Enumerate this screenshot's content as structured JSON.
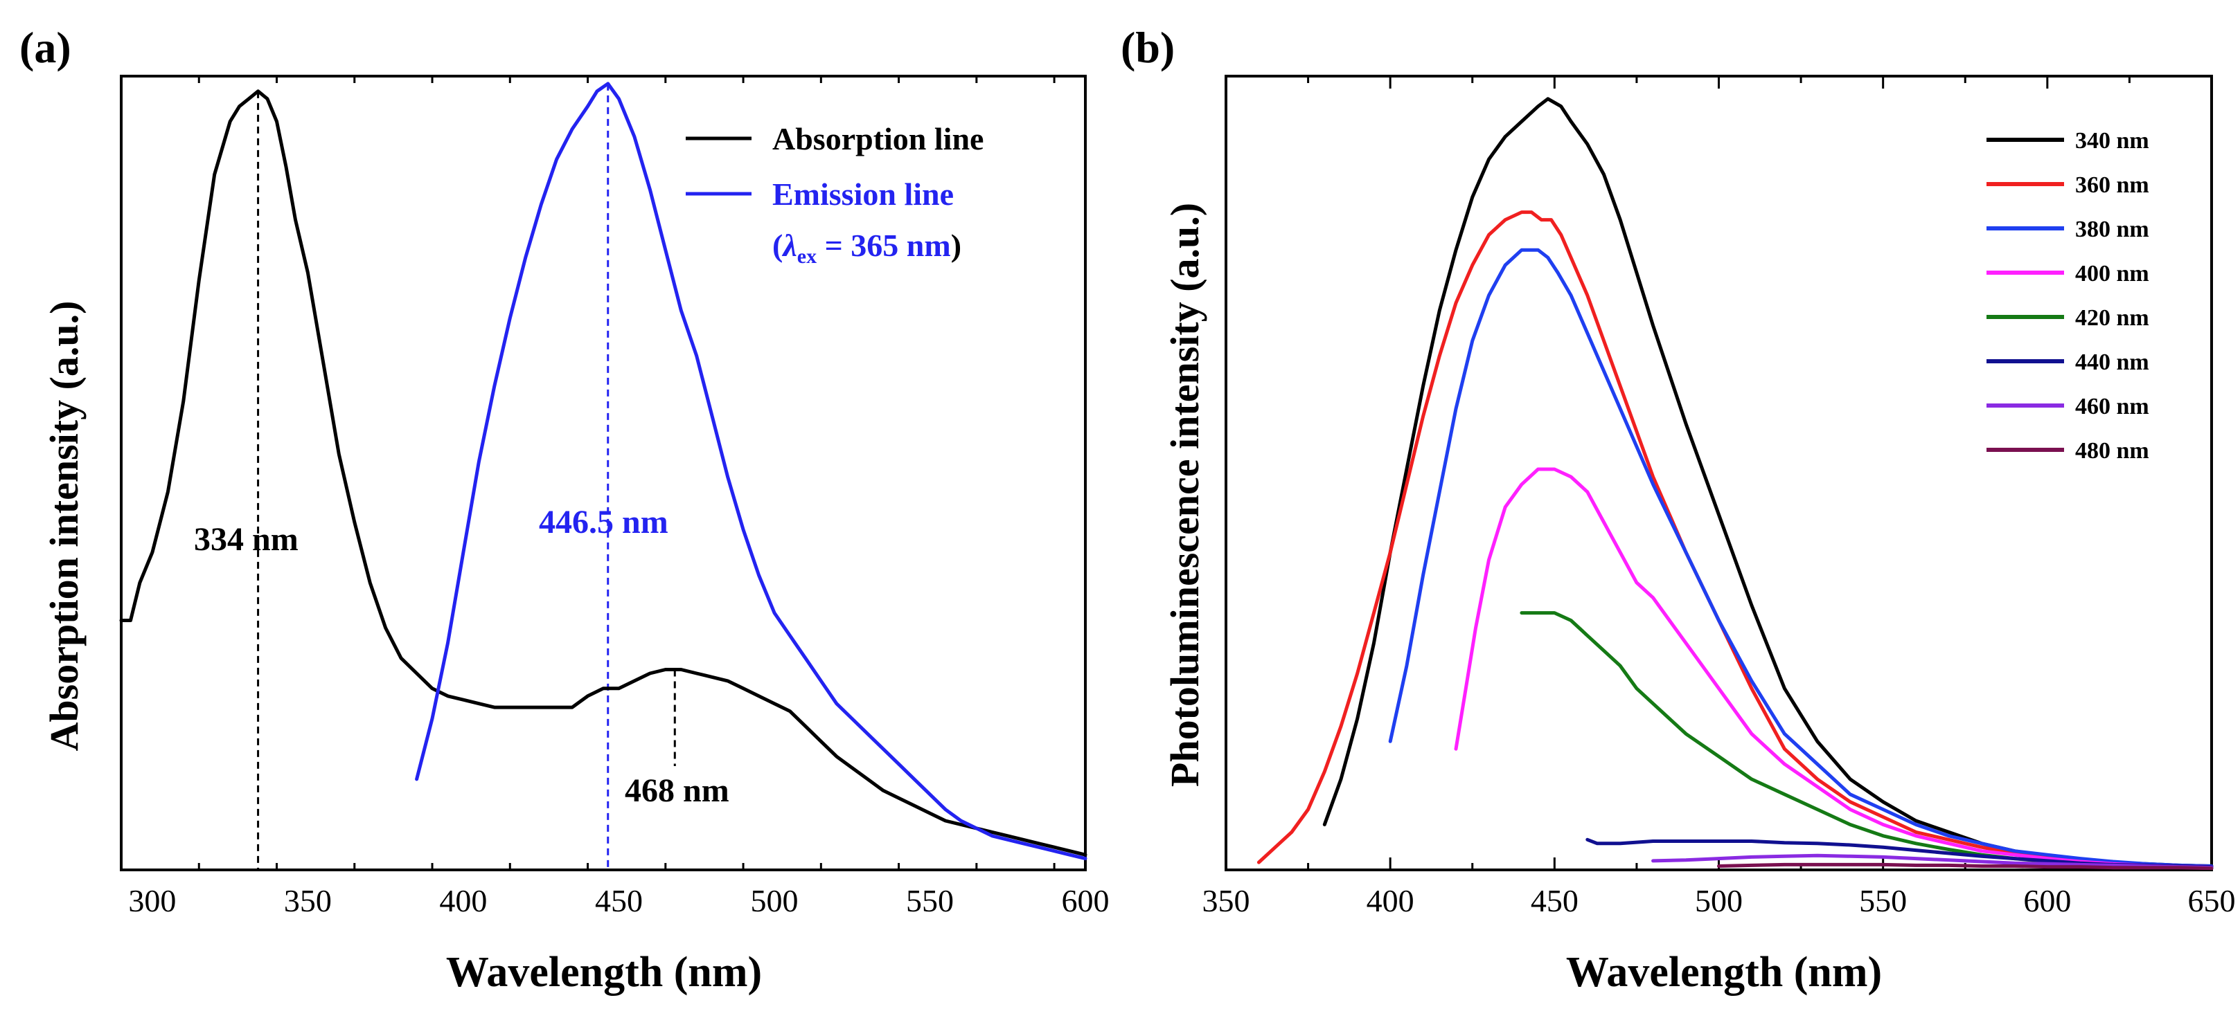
{
  "chart_data": [
    {
      "panel": "(a)",
      "type": "line",
      "xlabel": "Wavelength  (nm)",
      "ylabel": "Absorption intensity  (a.u.)",
      "xlim": [
        290,
        600
      ],
      "ylim": [
        0,
        1.05
      ],
      "xticks": [
        300,
        350,
        400,
        450,
        500,
        550,
        600
      ],
      "series": [
        {
          "name": "Absorption line",
          "color": "#000000",
          "x": [
            290,
            293,
            296,
            300,
            305,
            310,
            315,
            320,
            325,
            328,
            331,
            334,
            337,
            340,
            343,
            346,
            350,
            355,
            360,
            365,
            370,
            375,
            380,
            385,
            390,
            395,
            400,
            405,
            410,
            415,
            420,
            425,
            430,
            435,
            440,
            445,
            450,
            455,
            460,
            465,
            468,
            470,
            475,
            480,
            485,
            490,
            495,
            500,
            505,
            510,
            515,
            520,
            525,
            530,
            535,
            540,
            545,
            550,
            555,
            560,
            565,
            570,
            575,
            580,
            585,
            590,
            595,
            600
          ],
          "y": [
            0.33,
            0.33,
            0.38,
            0.42,
            0.5,
            0.62,
            0.78,
            0.92,
            0.99,
            1.01,
            1.02,
            1.03,
            1.02,
            0.99,
            0.93,
            0.86,
            0.79,
            0.67,
            0.55,
            0.46,
            0.38,
            0.32,
            0.28,
            0.26,
            0.24,
            0.23,
            0.225,
            0.22,
            0.215,
            0.215,
            0.215,
            0.215,
            0.215,
            0.215,
            0.23,
            0.24,
            0.24,
            0.25,
            0.26,
            0.265,
            0.265,
            0.265,
            0.26,
            0.255,
            0.25,
            0.24,
            0.23,
            0.22,
            0.21,
            0.19,
            0.17,
            0.15,
            0.135,
            0.12,
            0.105,
            0.095,
            0.085,
            0.075,
            0.065,
            0.06,
            0.055,
            0.05,
            0.045,
            0.04,
            0.035,
            0.03,
            0.025,
            0.02
          ]
        },
        {
          "name": "Emission line",
          "color": "#2323f0",
          "x": [
            385,
            390,
            395,
            400,
            405,
            410,
            415,
            420,
            425,
            430,
            435,
            440,
            443,
            446.5,
            450,
            455,
            460,
            465,
            470,
            475,
            480,
            485,
            490,
            495,
            500,
            505,
            510,
            515,
            520,
            525,
            530,
            535,
            540,
            545,
            550,
            555,
            560,
            565,
            570,
            575,
            580,
            585,
            590,
            595,
            600
          ],
          "y": [
            0.12,
            0.2,
            0.3,
            0.42,
            0.54,
            0.64,
            0.73,
            0.81,
            0.88,
            0.94,
            0.98,
            1.01,
            1.03,
            1.04,
            1.02,
            0.97,
            0.9,
            0.82,
            0.74,
            0.68,
            0.6,
            0.52,
            0.45,
            0.39,
            0.34,
            0.31,
            0.28,
            0.25,
            0.22,
            0.2,
            0.18,
            0.16,
            0.14,
            0.12,
            0.1,
            0.08,
            0.065,
            0.055,
            0.045,
            0.04,
            0.035,
            0.03,
            0.025,
            0.02,
            0.015
          ]
        }
      ],
      "legend": [
        {
          "label": "Absorption line",
          "color": "#000000"
        },
        {
          "label": "Emission line",
          "color": "#2323f0"
        },
        {
          "label": "(λex = 365 nm)",
          "color": "#2323f0"
        }
      ],
      "legend_position": "top-right",
      "annotations": [
        {
          "text": "334 nm",
          "x": 334,
          "color": "#000000"
        },
        {
          "text": "446.5 nm",
          "x": 446.5,
          "color": "#2323f0"
        },
        {
          "text": "468 nm",
          "x": 468,
          "color": "#000000"
        }
      ],
      "legend_text": {
        "absorption": "Absorption line",
        "emission": "Emission line",
        "lambda_symbol": "λ",
        "lambda_sub": "ex",
        "lambda_rest": " = 365 nm",
        "open_paren": "(",
        "close_paren": ")"
      }
    },
    {
      "panel": "(b)",
      "type": "line",
      "xlabel": "Wavelength  (nm)",
      "ylabel": "Photoluminescence  intensity  (a.u.)",
      "xlim": [
        350,
        650
      ],
      "ylim": [
        0,
        1.05
      ],
      "xticks": [
        350,
        400,
        450,
        500,
        550,
        600,
        650
      ],
      "legend_position": "top-right",
      "series": [
        {
          "name": "340 nm",
          "color": "#000000",
          "x": [
            380,
            385,
            390,
            395,
            400,
            405,
            410,
            415,
            420,
            425,
            430,
            435,
            440,
            445,
            448,
            452,
            455,
            460,
            465,
            470,
            475,
            480,
            490,
            500,
            510,
            520,
            530,
            540,
            550,
            560,
            570,
            580,
            590,
            600,
            610,
            620,
            630,
            640,
            650
          ],
          "y": [
            0.06,
            0.12,
            0.2,
            0.3,
            0.42,
            0.53,
            0.64,
            0.74,
            0.82,
            0.89,
            0.94,
            0.97,
            0.99,
            1.01,
            1.02,
            1.01,
            0.99,
            0.96,
            0.92,
            0.86,
            0.79,
            0.72,
            0.59,
            0.47,
            0.35,
            0.24,
            0.17,
            0.12,
            0.09,
            0.065,
            0.05,
            0.035,
            0.025,
            0.018,
            0.013,
            0.01,
            0.008,
            0.006,
            0.005
          ]
        },
        {
          "name": "360 nm",
          "color": "#f02020",
          "x": [
            360,
            365,
            370,
            375,
            380,
            385,
            390,
            395,
            400,
            405,
            410,
            415,
            420,
            425,
            430,
            435,
            440,
            443,
            446,
            449,
            452,
            455,
            460,
            465,
            470,
            475,
            480,
            490,
            500,
            510,
            520,
            530,
            540,
            550,
            560,
            570,
            580,
            590,
            600,
            610,
            620,
            630,
            640,
            650
          ],
          "y": [
            0.01,
            0.03,
            0.05,
            0.08,
            0.13,
            0.19,
            0.26,
            0.34,
            0.42,
            0.51,
            0.6,
            0.68,
            0.75,
            0.8,
            0.84,
            0.86,
            0.87,
            0.87,
            0.86,
            0.86,
            0.84,
            0.81,
            0.76,
            0.7,
            0.64,
            0.58,
            0.52,
            0.42,
            0.33,
            0.24,
            0.16,
            0.12,
            0.09,
            0.07,
            0.05,
            0.04,
            0.03,
            0.022,
            0.016,
            0.012,
            0.009,
            0.007,
            0.005,
            0.004
          ]
        },
        {
          "name": "380 nm",
          "color": "#1f3ff0",
          "x": [
            400,
            405,
            410,
            415,
            420,
            425,
            430,
            435,
            440,
            445,
            448,
            451,
            455,
            460,
            465,
            470,
            475,
            480,
            490,
            500,
            510,
            520,
            530,
            540,
            550,
            560,
            570,
            580,
            590,
            600,
            610,
            620,
            630,
            640,
            650
          ],
          "y": [
            0.17,
            0.27,
            0.39,
            0.5,
            0.61,
            0.7,
            0.76,
            0.8,
            0.82,
            0.82,
            0.81,
            0.79,
            0.76,
            0.71,
            0.66,
            0.61,
            0.56,
            0.51,
            0.42,
            0.33,
            0.25,
            0.18,
            0.14,
            0.1,
            0.08,
            0.06,
            0.045,
            0.035,
            0.025,
            0.02,
            0.015,
            0.011,
            0.008,
            0.006,
            0.005
          ]
        },
        {
          "name": "400 nm",
          "color": "#ff20ff",
          "x": [
            420,
            423,
            426,
            430,
            435,
            440,
            445,
            450,
            455,
            460,
            465,
            470,
            475,
            480,
            485,
            490,
            500,
            510,
            520,
            530,
            540,
            550,
            560,
            570,
            580,
            590,
            600,
            610,
            620,
            630,
            640,
            650
          ],
          "y": [
            0.16,
            0.24,
            0.32,
            0.41,
            0.48,
            0.51,
            0.53,
            0.53,
            0.52,
            0.5,
            0.46,
            0.42,
            0.38,
            0.36,
            0.33,
            0.3,
            0.24,
            0.18,
            0.14,
            0.11,
            0.08,
            0.06,
            0.045,
            0.035,
            0.025,
            0.02,
            0.015,
            0.011,
            0.008,
            0.006,
            0.005,
            0.004
          ]
        },
        {
          "name": "420 nm",
          "color": "#157a15",
          "x": [
            440,
            445,
            450,
            455,
            460,
            465,
            470,
            475,
            480,
            485,
            490,
            500,
            510,
            520,
            530,
            540,
            550,
            560,
            570,
            580,
            590,
            600,
            610,
            620,
            630,
            640,
            650
          ],
          "y": [
            0.34,
            0.34,
            0.34,
            0.33,
            0.31,
            0.29,
            0.27,
            0.24,
            0.22,
            0.2,
            0.18,
            0.15,
            0.12,
            0.1,
            0.08,
            0.06,
            0.045,
            0.035,
            0.027,
            0.02,
            0.015,
            0.011,
            0.008,
            0.006,
            0.005,
            0.004,
            0.003
          ]
        },
        {
          "name": "440 nm",
          "color": "#101090",
          "x": [
            460,
            463,
            470,
            480,
            490,
            500,
            510,
            520,
            530,
            540,
            550,
            560,
            570,
            580,
            590,
            600,
            610,
            620,
            630,
            640,
            650
          ],
          "y": [
            0.04,
            0.035,
            0.035,
            0.038,
            0.038,
            0.038,
            0.038,
            0.036,
            0.035,
            0.033,
            0.03,
            0.026,
            0.022,
            0.018,
            0.015,
            0.012,
            0.009,
            0.007,
            0.006,
            0.005,
            0.004
          ]
        },
        {
          "name": "460 nm",
          "color": "#8a2be2",
          "x": [
            480,
            490,
            500,
            510,
            520,
            530,
            540,
            550,
            560,
            570,
            580,
            590,
            600,
            610,
            620,
            630,
            640,
            650
          ],
          "y": [
            0.012,
            0.013,
            0.015,
            0.017,
            0.018,
            0.019,
            0.018,
            0.017,
            0.015,
            0.013,
            0.011,
            0.009,
            0.008,
            0.007,
            0.006,
            0.005,
            0.004,
            0.003
          ]
        },
        {
          "name": "480 nm",
          "color": "#7a1050",
          "x": [
            500,
            510,
            520,
            530,
            540,
            550,
            560,
            570,
            580,
            590,
            600,
            610,
            620,
            630,
            640,
            650
          ],
          "y": [
            0.005,
            0.006,
            0.007,
            0.007,
            0.007,
            0.007,
            0.006,
            0.006,
            0.005,
            0.005,
            0.004,
            0.004,
            0.003,
            0.003,
            0.003,
            0.002
          ]
        }
      ]
    }
  ]
}
